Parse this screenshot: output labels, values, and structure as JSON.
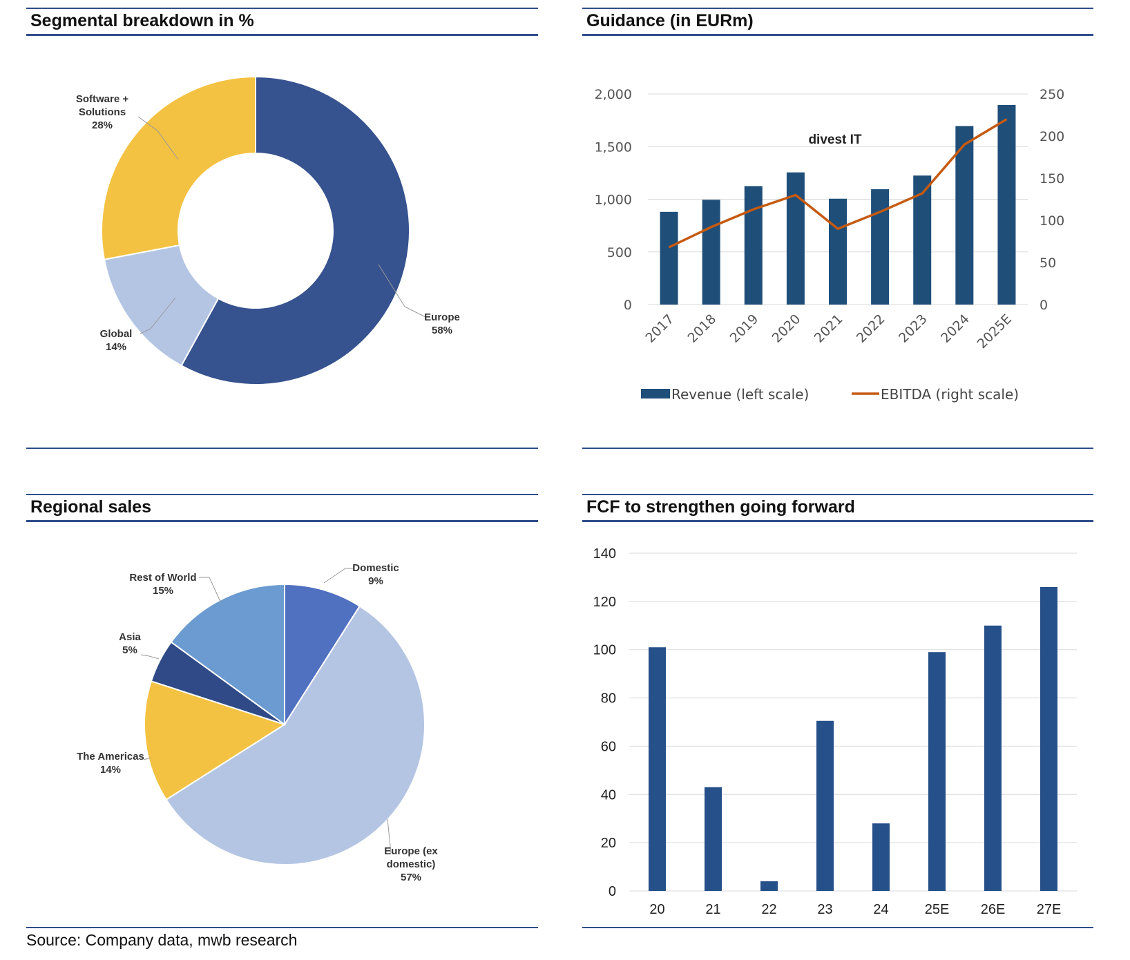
{
  "source": "Source: Company data, mwb research",
  "colors": {
    "navy": "#36528f",
    "dark_bar": "#1f4e79",
    "fcf_bar": "#26508a",
    "yellow": "#f4c242",
    "light_blue": "#b4c5e4",
    "mid_blue": "#6b9bd0",
    "domestic_blue": "#5070c0",
    "ebitda": "#c55a11",
    "rule": "#2f4d8c"
  },
  "chart_data": [
    {
      "type": "pie",
      "title": "Segmental breakdown in %",
      "donut": true,
      "slices": [
        {
          "name": "Europe",
          "value": 58,
          "label": "58%",
          "color": "#36528f"
        },
        {
          "name": "Global",
          "value": 14,
          "label": "14%",
          "color": "#b4c5e4"
        },
        {
          "name": "Software + Solutions",
          "value": 28,
          "label": "28%",
          "color": "#f4c242"
        }
      ]
    },
    {
      "type": "bar",
      "title": "Guidance (in EURm)",
      "annotation": "divest IT",
      "categories": [
        "2017",
        "2018",
        "2019",
        "2020",
        "2021",
        "2022",
        "2023",
        "2024",
        "2025E"
      ],
      "series": [
        {
          "name": "Revenue (left scale)",
          "type": "bar",
          "axis": "left",
          "color": "#1f4e79",
          "values": [
            880,
            995,
            1125,
            1255,
            1005,
            1095,
            1225,
            1695,
            1895
          ]
        },
        {
          "name": "EBITDA (right scale)",
          "type": "line",
          "axis": "right",
          "color": "#c55a11",
          "values": [
            68,
            92,
            113,
            130,
            90,
            110,
            132,
            190,
            220
          ]
        }
      ],
      "ylim": [
        0,
        2000
      ],
      "y_ticks": [
        "0",
        "500",
        "1,000",
        "1,500",
        "2,000"
      ],
      "y2lim": [
        0,
        250
      ],
      "y2_ticks": [
        "0",
        "50",
        "100",
        "150",
        "200",
        "250"
      ],
      "grid": true,
      "legend": "bottom"
    },
    {
      "type": "pie",
      "title": "Regional sales",
      "donut": false,
      "slices": [
        {
          "name": "Domestic",
          "value": 9,
          "label": "9%",
          "color": "#5070c0"
        },
        {
          "name": "Europe (ex domestic)",
          "value": 57,
          "label": "57%",
          "color": "#b4c5e4"
        },
        {
          "name": "The Americas",
          "value": 14,
          "label": "14%",
          "color": "#f4c242"
        },
        {
          "name": "Asia",
          "value": 5,
          "label": "5%",
          "color": "#2f4a86"
        },
        {
          "name": "Rest of World",
          "value": 15,
          "label": "15%",
          "color": "#6b9bd0"
        }
      ]
    },
    {
      "type": "bar",
      "title": "FCF to strengthen going forward",
      "categories": [
        "20",
        "21",
        "22",
        "23",
        "24",
        "25E",
        "26E",
        "27E"
      ],
      "series": [
        {
          "color": "#26508a",
          "values": [
            101,
            43,
            4,
            70.5,
            28,
            99,
            110,
            126
          ]
        }
      ],
      "ylim": [
        0,
        140
      ],
      "y_ticks": [
        "0",
        "20",
        "40",
        "60",
        "80",
        "100",
        "120",
        "140"
      ],
      "grid": true
    }
  ]
}
